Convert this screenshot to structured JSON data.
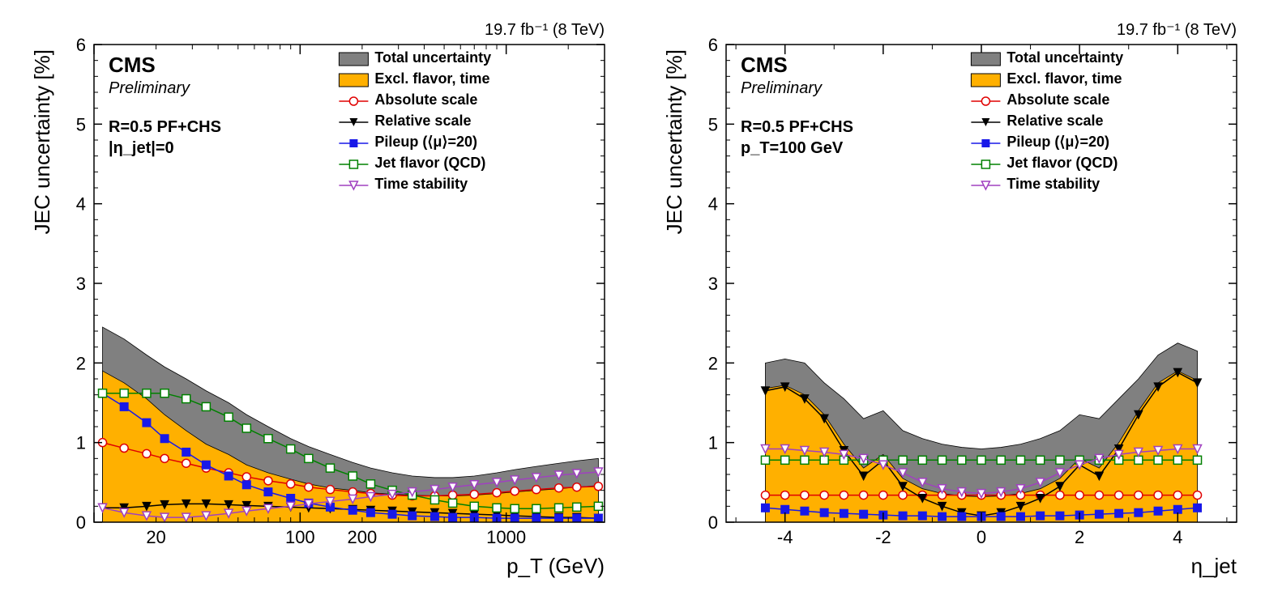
{
  "global": {
    "luminosity_label": "19.7 fb⁻¹ (8 TeV)",
    "cms_label": "CMS",
    "preliminary_label": "Preliminary",
    "y_axis_label": "JEC uncertainty [%]",
    "colors": {
      "total_fill": "#808080",
      "excl_fill": "#ffb000",
      "absolute": "#e00000",
      "relative": "#000000",
      "pileup": "#1818e8",
      "jetflavor": "#008000",
      "timestab": "#a040c0",
      "axis": "#000000",
      "background": "#ffffff"
    },
    "legend_items": [
      {
        "key": "total",
        "label": "Total uncertainty"
      },
      {
        "key": "excl",
        "label": "Excl. flavor, time"
      },
      {
        "key": "absolute",
        "label": "Absolute scale"
      },
      {
        "key": "relative",
        "label": "Relative scale"
      },
      {
        "key": "pileup",
        "label": "Pileup (⟨μ⟩=20)"
      },
      {
        "key": "jetflavor",
        "label": "Jet flavor (QCD)"
      },
      {
        "key": "timestab",
        "label": "Time stability"
      }
    ],
    "ylim": [
      0,
      6
    ],
    "yticks": [
      0,
      1,
      2,
      3,
      4,
      5,
      6
    ],
    "tick_fontsize": 22,
    "label_fontsize": 26,
    "marker_size": 5,
    "line_width": 1.5
  },
  "left": {
    "x_axis_label": "p_T (GeV)",
    "xscale": "log",
    "xlim": [
      10,
      3000
    ],
    "xticks_major": [
      20,
      100,
      200,
      1000
    ],
    "anno1": "R=0.5 PF+CHS",
    "anno2": "|η_jet|=0",
    "series": {
      "x": [
        11,
        14,
        18,
        22,
        28,
        35,
        45,
        55,
        70,
        90,
        110,
        140,
        180,
        220,
        280,
        350,
        450,
        550,
        700,
        900,
        1100,
        1400,
        1800,
        2200,
        2800
      ],
      "total": [
        2.45,
        2.3,
        2.1,
        1.95,
        1.8,
        1.65,
        1.5,
        1.35,
        1.2,
        1.05,
        0.95,
        0.85,
        0.75,
        0.68,
        0.62,
        0.58,
        0.56,
        0.56,
        0.58,
        0.62,
        0.66,
        0.7,
        0.74,
        0.77,
        0.8
      ],
      "excl": [
        1.9,
        1.75,
        1.55,
        1.35,
        1.15,
        0.98,
        0.85,
        0.72,
        0.62,
        0.54,
        0.48,
        0.43,
        0.4,
        0.37,
        0.35,
        0.34,
        0.33,
        0.33,
        0.34,
        0.36,
        0.38,
        0.4,
        0.42,
        0.44,
        0.46
      ],
      "absolute": [
        1.0,
        0.93,
        0.86,
        0.8,
        0.74,
        0.68,
        0.62,
        0.57,
        0.52,
        0.48,
        0.44,
        0.41,
        0.38,
        0.36,
        0.34,
        0.33,
        0.33,
        0.34,
        0.35,
        0.37,
        0.39,
        0.41,
        0.43,
        0.44,
        0.45
      ],
      "relative": [
        0.18,
        0.18,
        0.2,
        0.22,
        0.23,
        0.23,
        0.22,
        0.21,
        0.2,
        0.19,
        0.18,
        0.17,
        0.16,
        0.15,
        0.14,
        0.13,
        0.12,
        0.11,
        0.1,
        0.09,
        0.08,
        0.07,
        0.06,
        0.06,
        0.05
      ],
      "pileup": [
        1.62,
        1.45,
        1.25,
        1.05,
        0.88,
        0.72,
        0.58,
        0.47,
        0.38,
        0.3,
        0.24,
        0.19,
        0.15,
        0.12,
        0.1,
        0.08,
        0.07,
        0.06,
        0.06,
        0.05,
        0.05,
        0.05,
        0.05,
        0.05,
        0.05
      ],
      "jetflavor": [
        1.62,
        1.62,
        1.62,
        1.62,
        1.55,
        1.45,
        1.32,
        1.18,
        1.05,
        0.92,
        0.8,
        0.68,
        0.58,
        0.48,
        0.4,
        0.34,
        0.28,
        0.24,
        0.2,
        0.18,
        0.17,
        0.17,
        0.18,
        0.19,
        0.2
      ],
      "timestab": [
        0.18,
        0.12,
        0.08,
        0.06,
        0.06,
        0.08,
        0.11,
        0.14,
        0.17,
        0.2,
        0.23,
        0.26,
        0.29,
        0.32,
        0.35,
        0.38,
        0.41,
        0.44,
        0.47,
        0.5,
        0.53,
        0.56,
        0.59,
        0.61,
        0.63
      ]
    }
  },
  "right": {
    "x_axis_label": "η_jet",
    "xscale": "linear",
    "xlim": [
      -5.2,
      5.2
    ],
    "xticks_major": [
      -4,
      -2,
      0,
      2,
      4
    ],
    "anno1": "R=0.5 PF+CHS",
    "anno2": "p_T=100 GeV",
    "series": {
      "x": [
        -4.4,
        -4.0,
        -3.6,
        -3.2,
        -2.8,
        -2.4,
        -2.0,
        -1.6,
        -1.2,
        -0.8,
        -0.4,
        0.0,
        0.4,
        0.8,
        1.2,
        1.6,
        2.0,
        2.4,
        2.8,
        3.2,
        3.6,
        4.0,
        4.4
      ],
      "total": [
        2.0,
        2.05,
        2.0,
        1.75,
        1.55,
        1.3,
        1.4,
        1.15,
        1.05,
        0.98,
        0.94,
        0.92,
        0.94,
        0.98,
        1.05,
        1.15,
        1.35,
        1.3,
        1.55,
        1.8,
        2.1,
        2.25,
        2.15
      ],
      "excl": [
        1.68,
        1.72,
        1.6,
        1.35,
        0.98,
        0.68,
        0.85,
        0.55,
        0.42,
        0.36,
        0.33,
        0.32,
        0.33,
        0.36,
        0.42,
        0.55,
        0.8,
        0.68,
        1.0,
        1.4,
        1.75,
        1.9,
        1.78
      ],
      "absolute": [
        0.34,
        0.34,
        0.34,
        0.34,
        0.34,
        0.34,
        0.34,
        0.34,
        0.34,
        0.34,
        0.34,
        0.34,
        0.34,
        0.34,
        0.34,
        0.34,
        0.34,
        0.34,
        0.34,
        0.34,
        0.34,
        0.34,
        0.34
      ],
      "relative": [
        1.65,
        1.7,
        1.55,
        1.3,
        0.9,
        0.58,
        0.78,
        0.45,
        0.3,
        0.2,
        0.12,
        0.08,
        0.12,
        0.2,
        0.3,
        0.45,
        0.72,
        0.58,
        0.92,
        1.35,
        1.7,
        1.88,
        1.75
      ],
      "pileup": [
        0.18,
        0.16,
        0.14,
        0.12,
        0.11,
        0.1,
        0.09,
        0.08,
        0.08,
        0.07,
        0.07,
        0.07,
        0.07,
        0.07,
        0.08,
        0.08,
        0.09,
        0.1,
        0.11,
        0.12,
        0.14,
        0.16,
        0.18
      ],
      "jetflavor": [
        0.78,
        0.78,
        0.78,
        0.78,
        0.78,
        0.78,
        0.78,
        0.78,
        0.78,
        0.78,
        0.78,
        0.78,
        0.78,
        0.78,
        0.78,
        0.78,
        0.78,
        0.78,
        0.78,
        0.78,
        0.78,
        0.78,
        0.78
      ],
      "timestab": [
        0.92,
        0.92,
        0.9,
        0.88,
        0.85,
        0.8,
        0.72,
        0.62,
        0.5,
        0.42,
        0.38,
        0.36,
        0.38,
        0.42,
        0.5,
        0.62,
        0.72,
        0.8,
        0.85,
        0.88,
        0.9,
        0.92,
        0.92
      ]
    }
  }
}
